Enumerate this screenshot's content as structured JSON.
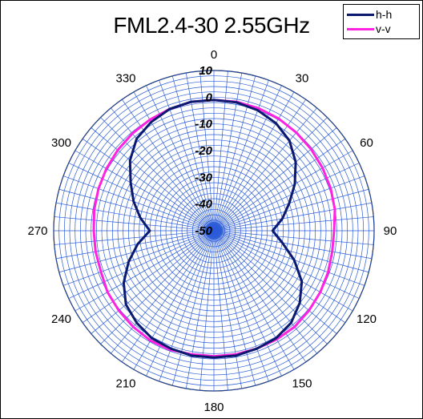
{
  "chart_data": {
    "type": "polar",
    "title": "FML2.4-30 2.55GHz",
    "angle_ticks": [
      "0",
      "30",
      "60",
      "90",
      "120",
      "150",
      "180",
      "210",
      "240",
      "270",
      "300",
      "330"
    ],
    "radial_ticks": [
      "10",
      "0",
      "-10",
      "-20",
      "-30",
      "-40",
      "-50"
    ],
    "rlim": [
      -50,
      10
    ],
    "angle_direction": "clockwise",
    "angle_zero": "top",
    "grid": true,
    "legend_position": "top-right",
    "colors": {
      "grid": "#2a5bd7",
      "hh": "#0b1a6e",
      "vv": "#ff22e0"
    },
    "series": [
      {
        "name": "h-h",
        "color": "#0b1a6e",
        "points": [
          [
            0,
            -1
          ],
          [
            10,
            -1.2
          ],
          [
            20,
            -2
          ],
          [
            30,
            -3.5
          ],
          [
            40,
            -6
          ],
          [
            50,
            -10
          ],
          [
            60,
            -15
          ],
          [
            70,
            -20
          ],
          [
            80,
            -24
          ],
          [
            90,
            -28
          ],
          [
            100,
            -24
          ],
          [
            110,
            -18
          ],
          [
            120,
            -12
          ],
          [
            130,
            -8
          ],
          [
            140,
            -5
          ],
          [
            150,
            -3.5
          ],
          [
            160,
            -3
          ],
          [
            170,
            -2.5
          ],
          [
            180,
            -2.5
          ],
          [
            190,
            -2.5
          ],
          [
            200,
            -3
          ],
          [
            210,
            -3.5
          ],
          [
            220,
            -5
          ],
          [
            230,
            -7
          ],
          [
            240,
            -11
          ],
          [
            250,
            -16
          ],
          [
            260,
            -21
          ],
          [
            270,
            -26
          ],
          [
            280,
            -22
          ],
          [
            290,
            -18
          ],
          [
            300,
            -14
          ],
          [
            310,
            -9
          ],
          [
            320,
            -5
          ],
          [
            330,
            -3
          ],
          [
            340,
            -1.5
          ],
          [
            350,
            -1
          ]
        ]
      },
      {
        "name": "v-v",
        "color": "#ff22e0",
        "points": [
          [
            0,
            -1
          ],
          [
            10,
            -1
          ],
          [
            20,
            -1.2
          ],
          [
            30,
            -1.5
          ],
          [
            40,
            -2
          ],
          [
            50,
            -2.5
          ],
          [
            60,
            -3
          ],
          [
            70,
            -3.5
          ],
          [
            80,
            -4
          ],
          [
            90,
            -5
          ],
          [
            100,
            -5
          ],
          [
            110,
            -4.5
          ],
          [
            120,
            -4
          ],
          [
            130,
            -3.5
          ],
          [
            140,
            -3
          ],
          [
            150,
            -3
          ],
          [
            160,
            -3
          ],
          [
            170,
            -3
          ],
          [
            180,
            -3
          ],
          [
            190,
            -3
          ],
          [
            200,
            -2.5
          ],
          [
            210,
            -2.5
          ],
          [
            220,
            -3
          ],
          [
            230,
            -3.5
          ],
          [
            240,
            -4
          ],
          [
            250,
            -5
          ],
          [
            260,
            -5
          ],
          [
            270,
            -5
          ],
          [
            280,
            -4.5
          ],
          [
            290,
            -4
          ],
          [
            300,
            -3.5
          ],
          [
            310,
            -3
          ],
          [
            320,
            -2.5
          ],
          [
            330,
            -2
          ],
          [
            340,
            -1.5
          ],
          [
            350,
            -1
          ]
        ]
      }
    ]
  },
  "legend": {
    "hh_label": "h-h",
    "vv_label": "v-v"
  }
}
